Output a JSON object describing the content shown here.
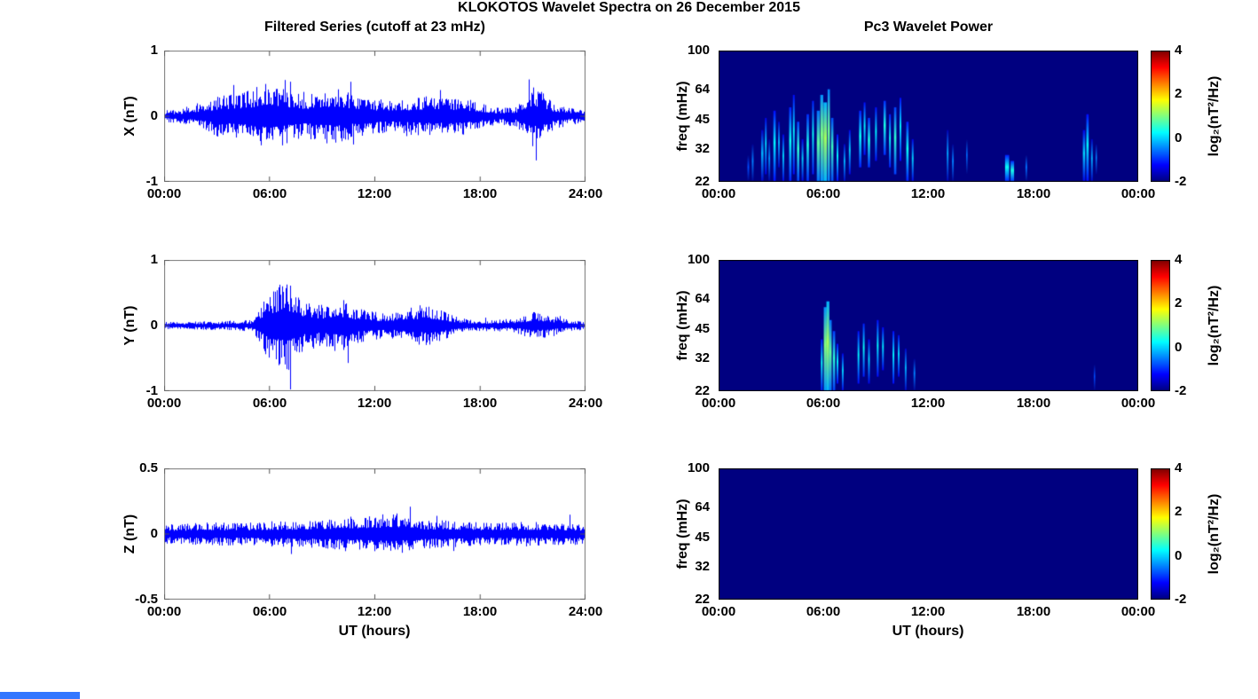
{
  "title": "KLOKOTOS Wavelet Spectra on 26 December 2015",
  "left": {
    "title": "Filtered Series (cutoff at 23 mHz)",
    "xlabel": "UT (hours)",
    "xticks": [
      "00:00",
      "06:00",
      "12:00",
      "18:00",
      "24:00"
    ],
    "panels": [
      {
        "ylabel": "X (nT)",
        "yticks": [
          "1",
          "0",
          "-1"
        ]
      },
      {
        "ylabel": "Y (nT)",
        "yticks": [
          "1",
          "0",
          "-1"
        ]
      },
      {
        "ylabel": "Z (nT)",
        "yticks": [
          "0.5",
          "0",
          "-0.5"
        ]
      }
    ]
  },
  "right": {
    "title": "Pc3 Wavelet Power",
    "xlabel": "UT (hours)",
    "ylabel": "freq (mHz)",
    "xticks": [
      "00:00",
      "06:00",
      "12:00",
      "18:00",
      "00:00"
    ],
    "yticks": [
      "100",
      "64",
      "45",
      "32",
      "22"
    ],
    "colorbar": {
      "label": "log₂(nT²/Hz)",
      "ticks": [
        "4",
        "2",
        "0",
        "-2"
      ]
    }
  },
  "colors": {
    "waveform_line": "#0000ff",
    "spectrogram_background": "#000080",
    "colormap": "jet",
    "artifact_bar": "#3377ff"
  },
  "chart_data": [
    {
      "type": "line",
      "title": "Filtered Series (cutoff at 23 mHz)",
      "xlabel": "UT (hours)",
      "xlim_hours": [
        0,
        24
      ],
      "xtick_hours": [
        0,
        6,
        12,
        18,
        24
      ],
      "grid": false,
      "legend": "none",
      "envelope_hours": [
        0,
        1,
        2,
        3,
        4,
        5,
        6,
        7,
        8,
        9,
        10,
        11,
        12,
        13,
        14,
        15,
        16,
        17,
        18,
        19,
        20,
        21,
        22,
        23,
        24
      ],
      "series": [
        {
          "name": "X (nT)",
          "ylim": [
            -1,
            1
          ],
          "ytick_values": [
            1,
            0,
            -1
          ],
          "signal": "zero-mean band-limited noise, bursts near 03:00-11:00 and 21:00, peak ~0.5 nT near 06:00",
          "envelope_nT": [
            0.08,
            0.1,
            0.16,
            0.28,
            0.32,
            0.38,
            0.5,
            0.38,
            0.3,
            0.38,
            0.4,
            0.3,
            0.25,
            0.22,
            0.26,
            0.28,
            0.24,
            0.26,
            0.18,
            0.12,
            0.14,
            0.45,
            0.22,
            0.12,
            0.1
          ]
        },
        {
          "name": "Y (nT)",
          "ylim": [
            -1,
            1
          ],
          "ytick_values": [
            1,
            0,
            -1
          ],
          "signal": "quiet until ~05:30, strong burst 06:00-08:00 peaking ~0.65 nT, moderate activity to 16:00, small burst ~21:00",
          "envelope_nT": [
            0.05,
            0.05,
            0.06,
            0.06,
            0.07,
            0.08,
            0.5,
            0.65,
            0.35,
            0.3,
            0.38,
            0.25,
            0.2,
            0.18,
            0.26,
            0.3,
            0.2,
            0.1,
            0.08,
            0.08,
            0.1,
            0.2,
            0.15,
            0.08,
            0.06
          ]
        },
        {
          "name": "Z (nT)",
          "ylim": [
            -0.5,
            0.5
          ],
          "ytick_values": [
            0.5,
            0,
            -0.5
          ],
          "signal": "nearly uniform low-amplitude noise ~0.1 nT, slight midday increase with spikes to ~0.3 nT near 13:00-14:00",
          "envelope_nT": [
            0.07,
            0.07,
            0.08,
            0.08,
            0.08,
            0.08,
            0.09,
            0.09,
            0.1,
            0.1,
            0.12,
            0.12,
            0.13,
            0.15,
            0.12,
            0.1,
            0.1,
            0.09,
            0.08,
            0.08,
            0.08,
            0.09,
            0.08,
            0.08,
            0.07
          ]
        }
      ]
    },
    {
      "type": "heatmap",
      "title": "Pc3 Wavelet Power",
      "xlabel": "UT (hours)",
      "ylabel": "freq (mHz)",
      "xlim_hours": [
        0,
        24
      ],
      "xtick_hours": [
        0,
        6,
        12,
        18,
        24
      ],
      "yscale": "log",
      "ylim_mHz": [
        22,
        100
      ],
      "ytick_mHz": [
        100,
        64,
        45,
        32,
        22
      ],
      "colorbar": {
        "label": "log₂(nT²/Hz)",
        "range": [
          -2,
          4
        ],
        "tick_values": [
          4,
          2,
          0,
          -2
        ],
        "colormap": "jet"
      },
      "background_power_log2": -2,
      "event_format": [
        "hour",
        "freq_lo_mHz",
        "freq_hi_mHz",
        "power_log2",
        "width_minutes"
      ],
      "panels": [
        {
          "name": "X",
          "events": [
            [
              1.7,
              22,
              30,
              -0.8,
              6
            ],
            [
              1.95,
              22,
              34,
              -0.5,
              6
            ],
            [
              2.5,
              22,
              40,
              -0.2,
              8
            ],
            [
              2.7,
              24,
              46,
              0,
              6
            ],
            [
              2.9,
              22,
              36,
              -0.4,
              6
            ],
            [
              3.2,
              22,
              50,
              0.2,
              8
            ],
            [
              3.45,
              26,
              44,
              -0.2,
              6
            ],
            [
              3.7,
              22,
              38,
              0,
              6
            ],
            [
              4.1,
              22,
              52,
              0.3,
              8
            ],
            [
              4.3,
              24,
              60,
              0.2,
              6
            ],
            [
              4.55,
              22,
              44,
              0.5,
              8
            ],
            [
              4.8,
              22,
              36,
              0,
              6
            ],
            [
              5.1,
              22,
              48,
              0.4,
              8
            ],
            [
              5.4,
              24,
              56,
              0.3,
              6
            ],
            [
              5.7,
              22,
              50,
              0.8,
              10
            ],
            [
              5.9,
              22,
              60,
              1,
              10
            ],
            [
              6.1,
              22,
              55,
              1.2,
              12
            ],
            [
              6.3,
              22,
              64,
              0.9,
              8
            ],
            [
              6.5,
              22,
              46,
              0.6,
              8
            ],
            [
              6.8,
              22,
              38,
              0.2,
              6
            ],
            [
              7.2,
              22,
              34,
              -0.2,
              6
            ],
            [
              7.5,
              24,
              40,
              0,
              6
            ],
            [
              8.1,
              26,
              50,
              0.3,
              8
            ],
            [
              8.35,
              30,
              55,
              0.2,
              6
            ],
            [
              8.6,
              26,
              46,
              0.4,
              8
            ],
            [
              9,
              28,
              52,
              0.2,
              6
            ],
            [
              9.5,
              30,
              56,
              0.4,
              8
            ],
            [
              9.8,
              26,
              48,
              0.3,
              6
            ],
            [
              10.1,
              24,
              52,
              0.5,
              8
            ],
            [
              10.4,
              28,
              58,
              0.2,
              6
            ],
            [
              10.8,
              22,
              44,
              0.3,
              8
            ],
            [
              11.1,
              22,
              36,
              0,
              6
            ],
            [
              13.1,
              22,
              40,
              -0.3,
              6
            ],
            [
              13.4,
              22,
              34,
              -0.5,
              6
            ],
            [
              14.2,
              24,
              36,
              -0.6,
              5
            ],
            [
              16.5,
              22,
              30,
              0.3,
              14
            ],
            [
              16.8,
              22,
              28,
              0.4,
              12
            ],
            [
              17.6,
              22,
              30,
              -0.6,
              6
            ],
            [
              20.9,
              22,
              40,
              0,
              8
            ],
            [
              21.1,
              22,
              48,
              0.2,
              8
            ],
            [
              21.35,
              22,
              36,
              -0.2,
              6
            ],
            [
              21.6,
              24,
              34,
              -0.5,
              5
            ]
          ]
        },
        {
          "name": "Y",
          "events": [
            [
              5.9,
              22,
              40,
              0.3,
              6
            ],
            [
              6.1,
              22,
              58,
              1,
              10
            ],
            [
              6.25,
              22,
              62,
              1.2,
              10
            ],
            [
              6.4,
              22,
              50,
              0.8,
              8
            ],
            [
              6.6,
              22,
              44,
              0.5,
              8
            ],
            [
              6.8,
              24,
              38,
              0.2,
              6
            ],
            [
              7.1,
              22,
              34,
              0,
              6
            ],
            [
              8,
              24,
              44,
              0.2,
              6
            ],
            [
              8.3,
              26,
              48,
              0.3,
              6
            ],
            [
              8.6,
              24,
              40,
              0,
              6
            ],
            [
              9.1,
              26,
              50,
              0.2,
              6
            ],
            [
              9.4,
              28,
              46,
              0.1,
              6
            ],
            [
              10,
              24,
              44,
              0.2,
              6
            ],
            [
              10.3,
              26,
              42,
              0,
              6
            ],
            [
              10.7,
              22,
              36,
              -0.2,
              6
            ],
            [
              11.2,
              22,
              32,
              -0.5,
              6
            ],
            [
              21.5,
              22,
              30,
              -0.8,
              5
            ]
          ]
        },
        {
          "name": "Z",
          "events": []
        }
      ]
    }
  ]
}
